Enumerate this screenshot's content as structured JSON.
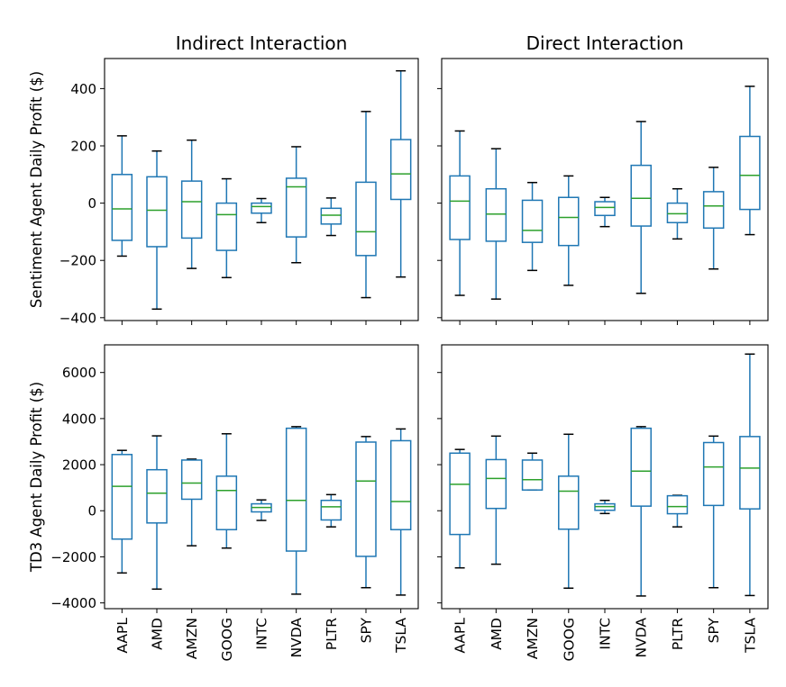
{
  "chart_data": [
    {
      "type": "box",
      "title": "Indirect Interaction",
      "ylabel": "Sentiment Agent Daily Profit ($)",
      "ylim": [
        -410,
        505
      ],
      "yticks": [
        -400,
        -200,
        0,
        200,
        400
      ],
      "ytick_labels": [
        "−400",
        "−200",
        "0",
        "200",
        "400"
      ],
      "categories": [
        "AAPL",
        "AMD",
        "AMZN",
        "GOOG",
        "INTC",
        "NVDA",
        "PLTR",
        "SPY",
        "TSLA"
      ],
      "boxes": [
        {
          "min": -185,
          "q1": -130,
          "median": -20,
          "q3": 100,
          "max": 235
        },
        {
          "min": -370,
          "q1": -152,
          "median": -25,
          "q3": 92,
          "max": 182
        },
        {
          "min": -228,
          "q1": -122,
          "median": 5,
          "q3": 77,
          "max": 220
        },
        {
          "min": -260,
          "q1": -165,
          "median": -40,
          "q3": 0,
          "max": 85
        },
        {
          "min": -68,
          "q1": -35,
          "median": -12,
          "q3": 0,
          "max": 16
        },
        {
          "min": -208,
          "q1": -118,
          "median": 57,
          "q3": 87,
          "max": 197
        },
        {
          "min": -113,
          "q1": -73,
          "median": -42,
          "q3": -18,
          "max": 18
        },
        {
          "min": -330,
          "q1": -183,
          "median": -100,
          "q3": 73,
          "max": 320
        },
        {
          "min": -258,
          "q1": 13,
          "median": 102,
          "q3": 222,
          "max": 462
        }
      ]
    },
    {
      "type": "box",
      "title": "Direct Interaction",
      "ylabel": "",
      "ylim": [
        -410,
        505
      ],
      "yticks": [
        -400,
        -200,
        0,
        200,
        400
      ],
      "ytick_labels": [],
      "categories": [
        "AAPL",
        "AMD",
        "AMZN",
        "GOOG",
        "INTC",
        "NVDA",
        "PLTR",
        "SPY",
        "TSLA"
      ],
      "boxes": [
        {
          "min": -322,
          "q1": -127,
          "median": 7,
          "q3": 95,
          "max": 252
        },
        {
          "min": -335,
          "q1": -133,
          "median": -38,
          "q3": 50,
          "max": 190
        },
        {
          "min": -235,
          "q1": -137,
          "median": -95,
          "q3": 10,
          "max": 72
        },
        {
          "min": -287,
          "q1": -148,
          "median": -50,
          "q3": 20,
          "max": 95
        },
        {
          "min": -82,
          "q1": -43,
          "median": -15,
          "q3": 5,
          "max": 20
        },
        {
          "min": -315,
          "q1": -80,
          "median": 17,
          "q3": 132,
          "max": 285
        },
        {
          "min": -125,
          "q1": -68,
          "median": -37,
          "q3": 0,
          "max": 50
        },
        {
          "min": -230,
          "q1": -87,
          "median": -10,
          "q3": 40,
          "max": 125
        },
        {
          "min": -110,
          "q1": -22,
          "median": 97,
          "q3": 233,
          "max": 408
        }
      ]
    },
    {
      "type": "box",
      "title": "",
      "ylabel": "TD3 Agent Daily Profit ($)",
      "ylim": [
        -4250,
        7200
      ],
      "yticks": [
        -4000,
        -2000,
        0,
        2000,
        4000,
        6000
      ],
      "ytick_labels": [
        "−4000",
        "−2000",
        "0",
        "2000",
        "4000",
        "6000"
      ],
      "categories": [
        "AAPL",
        "AMD",
        "AMZN",
        "GOOG",
        "INTC",
        "NVDA",
        "PLTR",
        "SPY",
        "TSLA"
      ],
      "xtick_labels": [
        "AAPL",
        "AMD",
        "AMZN",
        "GOOG",
        "INTC",
        "NVDA",
        "PLTR",
        "SPY",
        "TSLA"
      ],
      "boxes": [
        {
          "min": -2700,
          "q1": -1230,
          "median": 1060,
          "q3": 2440,
          "max": 2620
        },
        {
          "min": -3400,
          "q1": -530,
          "median": 760,
          "q3": 1780,
          "max": 3250
        },
        {
          "min": -1520,
          "q1": 500,
          "median": 1200,
          "q3": 2200,
          "max": 2240
        },
        {
          "min": -1620,
          "q1": -820,
          "median": 880,
          "q3": 1500,
          "max": 3340
        },
        {
          "min": -420,
          "q1": -50,
          "median": 140,
          "q3": 300,
          "max": 470
        },
        {
          "min": -3620,
          "q1": -1750,
          "median": 450,
          "q3": 3580,
          "max": 3650
        },
        {
          "min": -700,
          "q1": -400,
          "median": 170,
          "q3": 450,
          "max": 700
        },
        {
          "min": -3340,
          "q1": -1980,
          "median": 1290,
          "q3": 2980,
          "max": 3220
        },
        {
          "min": -3660,
          "q1": -820,
          "median": 400,
          "q3": 3040,
          "max": 3550
        }
      ]
    },
    {
      "type": "box",
      "title": "",
      "ylabel": "",
      "ylim": [
        -4250,
        7200
      ],
      "yticks": [
        -4000,
        -2000,
        0,
        2000,
        4000,
        6000
      ],
      "ytick_labels": [],
      "categories": [
        "AAPL",
        "AMD",
        "AMZN",
        "GOOG",
        "INTC",
        "NVDA",
        "PLTR",
        "SPY",
        "TSLA"
      ],
      "xtick_labels": [
        "AAPL",
        "AMD",
        "AMZN",
        "GOOG",
        "INTC",
        "NVDA",
        "PLTR",
        "SPY",
        "TSLA"
      ],
      "boxes": [
        {
          "min": -2480,
          "q1": -1030,
          "median": 1150,
          "q3": 2500,
          "max": 2660
        },
        {
          "min": -2320,
          "q1": 100,
          "median": 1400,
          "q3": 2220,
          "max": 3240
        },
        {
          "min": 900,
          "q1": 900,
          "median": 1350,
          "q3": 2200,
          "max": 2500
        },
        {
          "min": -3360,
          "q1": -800,
          "median": 850,
          "q3": 1500,
          "max": 3320
        },
        {
          "min": -120,
          "q1": 20,
          "median": 180,
          "q3": 300,
          "max": 450
        },
        {
          "min": -3700,
          "q1": 200,
          "median": 1720,
          "q3": 3580,
          "max": 3650
        },
        {
          "min": -700,
          "q1": -130,
          "median": 180,
          "q3": 650,
          "max": 670
        },
        {
          "min": -3340,
          "q1": 230,
          "median": 1900,
          "q3": 2960,
          "max": 3240
        },
        {
          "min": -3680,
          "q1": 80,
          "median": 1850,
          "q3": 3220,
          "max": 6800
        }
      ]
    }
  ]
}
